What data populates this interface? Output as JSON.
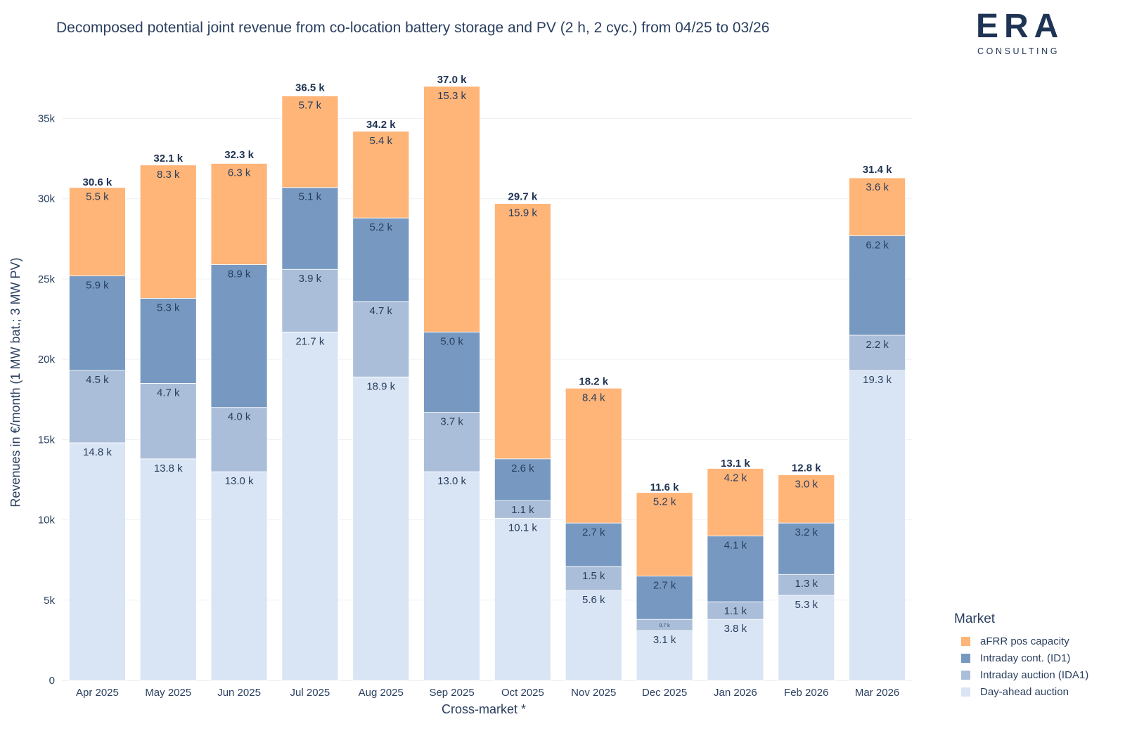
{
  "title": "Decomposed potential joint revenue from co-location battery storage and PV (2 h, 2 cyc.) from 04/25 to 03/26",
  "logo": {
    "brand": "ERA",
    "subtitle": "CONSULTING"
  },
  "legend": {
    "title": "Market",
    "items": [
      {
        "label": "aFRR pos capacity",
        "color": "#FFB478"
      },
      {
        "label": "Intraday cont. (ID1)",
        "color": "#7799C1"
      },
      {
        "label": "Intraday auction (IDA1)",
        "color": "#ABBED9"
      },
      {
        "label": "Day-ahead auction",
        "color": "#D9E5F5"
      }
    ]
  },
  "chart_data": {
    "type": "bar",
    "stacked": true,
    "xlabel": "Cross-market *",
    "ylabel": "Revenues in €/month (1 MW bat.; 3 MW PV)",
    "ylim": [
      0,
      38000
    ],
    "yticks": [
      0,
      5000,
      10000,
      15000,
      20000,
      25000,
      30000,
      35000
    ],
    "ytick_labels": [
      "0",
      "5k",
      "10k",
      "15k",
      "20k",
      "25k",
      "30k",
      "35k"
    ],
    "categories": [
      "Apr 2025",
      "May 2025",
      "Jun 2025",
      "Jul 2025",
      "Aug 2025",
      "Sep 2025",
      "Oct 2025",
      "Nov 2025",
      "Dec 2025",
      "Jan 2026",
      "Feb 2026",
      "Mar 2026"
    ],
    "series": [
      {
        "name": "Day-ahead auction",
        "color": "#D9E5F5",
        "values": [
          14800,
          13800,
          13000,
          21700,
          18900,
          13000,
          10100,
          5600,
          3100,
          3800,
          5300,
          19300
        ],
        "labels": [
          "14.8 k",
          "13.8 k",
          "13.0 k",
          "21.7 k",
          "18.9 k",
          "13.0 k",
          "10.1 k",
          "5.6 k",
          "3.1 k",
          "3.8 k",
          "5.3 k",
          "19.3 k"
        ]
      },
      {
        "name": "Intraday auction (IDA1)",
        "color": "#ABBED9",
        "values": [
          4500,
          4700,
          4000,
          3900,
          4700,
          3700,
          1100,
          1500,
          700,
          1100,
          1300,
          2200
        ],
        "labels": [
          "4.5 k",
          "4.7 k",
          "4.0 k",
          "3.9 k",
          "4.7 k",
          "3.7 k",
          "1.1 k",
          "1.5 k",
          "0.7 k",
          "1.1 k",
          "1.3 k",
          "2.2 k"
        ]
      },
      {
        "name": "Intraday cont. (ID1)",
        "color": "#7799C1",
        "values": [
          5900,
          5300,
          8900,
          5100,
          5200,
          5000,
          2600,
          2700,
          2700,
          4100,
          3200,
          6200
        ],
        "labels": [
          "5.9 k",
          "5.3 k",
          "8.9 k",
          "5.1 k",
          "5.2 k",
          "5.0 k",
          "2.6 k",
          "2.7 k",
          "2.7 k",
          "4.1 k",
          "3.2 k",
          "6.2 k"
        ]
      },
      {
        "name": "aFRR pos capacity",
        "color": "#FFB478",
        "values": [
          5500,
          8300,
          6300,
          5700,
          5400,
          15300,
          15900,
          8400,
          5200,
          4200,
          3000,
          3600
        ],
        "labels": [
          "5.5 k",
          "8.3 k",
          "6.3 k",
          "5.7 k",
          "5.4 k",
          "15.3 k",
          "15.9 k",
          "8.4 k",
          "5.2 k",
          "4.2 k",
          "3.0 k",
          "3.6 k"
        ]
      }
    ],
    "totals": [
      30600,
      32100,
      32300,
      36500,
      34200,
      37000,
      29700,
      18200,
      11600,
      13100,
      12800,
      31400
    ],
    "total_labels": [
      "30.6 k",
      "32.1 k",
      "32.3 k",
      "36.5 k",
      "34.2 k",
      "37.0 k",
      "29.7 k",
      "18.2 k",
      "11.6 k",
      "13.1 k",
      "12.8 k",
      "31.4 k"
    ],
    "grid": true,
    "legend_position": "right-bottom"
  }
}
